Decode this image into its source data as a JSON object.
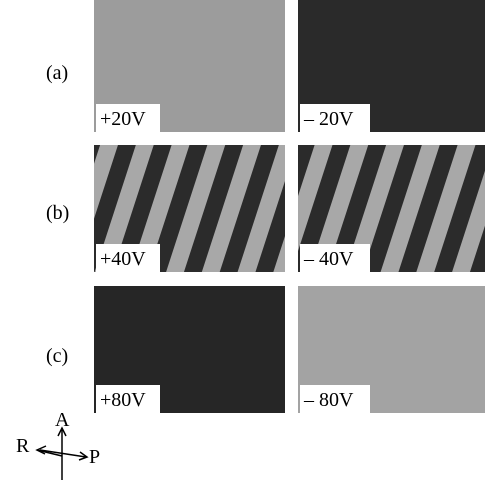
{
  "rows": [
    {
      "label": "(a)",
      "panels": [
        {
          "voltage": "+20V"
        },
        {
          "voltage": "– 20V"
        }
      ]
    },
    {
      "label": "(b)",
      "panels": [
        {
          "voltage": "+40V"
        },
        {
          "voltage": "– 40V"
        }
      ]
    },
    {
      "label": "(c)",
      "panels": [
        {
          "voltage": "+80V"
        },
        {
          "voltage": "– 80V"
        }
      ]
    }
  ],
  "axes": {
    "analyzer": "A",
    "rubbing": "R",
    "polarizer": "P"
  }
}
